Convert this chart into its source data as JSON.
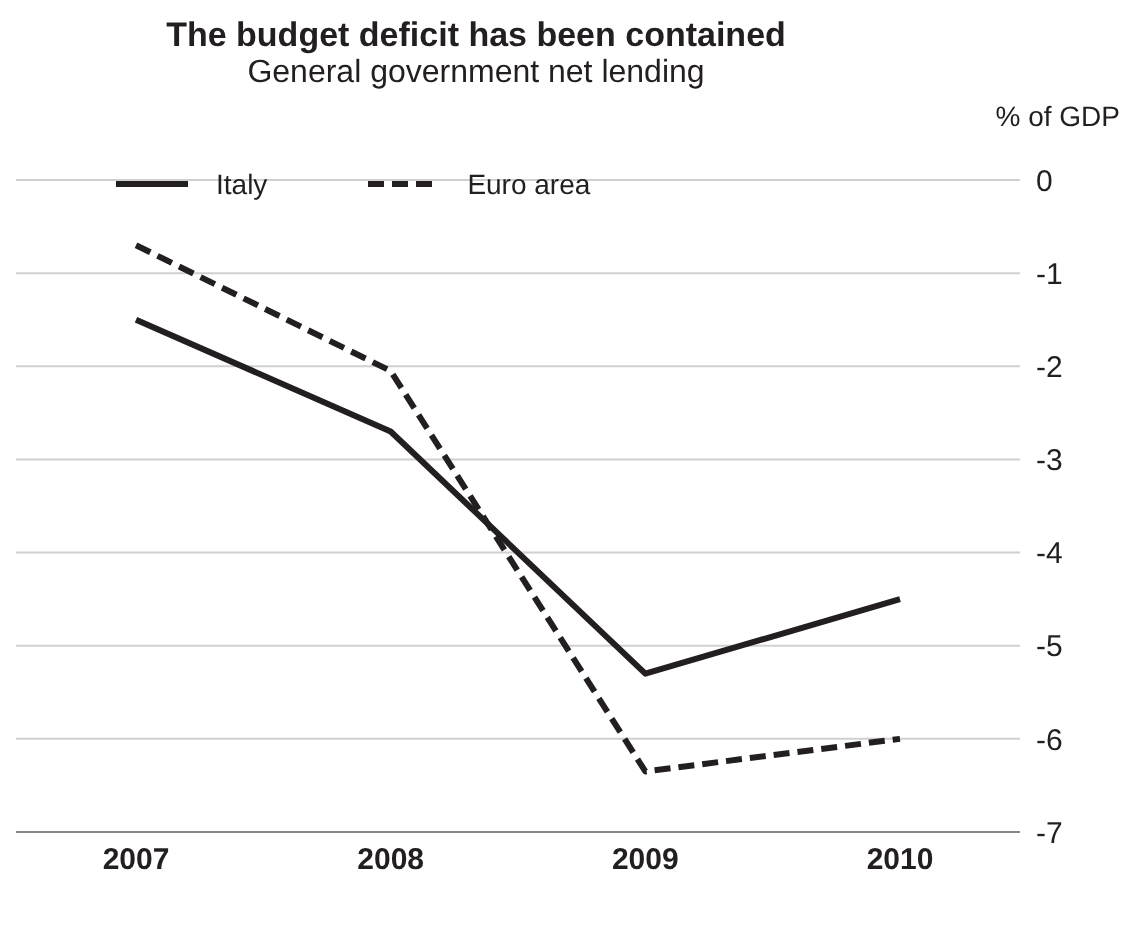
{
  "chart_data": {
    "type": "line",
    "title": "The budget deficit has been contained",
    "subtitle": "General government net lending",
    "ylabel": "% of GDP",
    "categories": [
      "2007",
      "2008",
      "2009",
      "2010"
    ],
    "series": [
      {
        "name": "Italy",
        "color": "#231f20",
        "values": [
          -1.5,
          -2.7,
          -5.3,
          -4.5
        ],
        "line_style": "solid"
      },
      {
        "name": "Euro area",
        "color": "#231f20",
        "values": [
          -0.7,
          -2.05,
          -6.35,
          -6.0
        ],
        "line_style": "dashed"
      }
    ],
    "ylim": [
      -7,
      0
    ],
    "yticks": [
      0,
      -1,
      -2,
      -3,
      -4,
      -5,
      -6,
      -7
    ],
    "grid": "y",
    "legend": "top left",
    "marker": "none"
  }
}
